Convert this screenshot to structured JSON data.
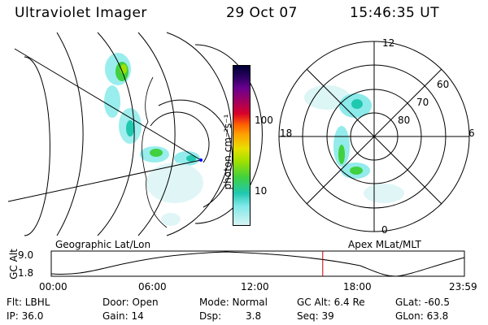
{
  "header": {
    "instrument": "Ultraviolet Imager",
    "date": "29 Oct 07",
    "time": "15:46:35 UT"
  },
  "geo_panel": {
    "label": "Geographic Lat/Lon"
  },
  "polar_panel": {
    "label": "Apex MLat/MLT",
    "mlt_labels": {
      "top": "12",
      "right": "6",
      "bottom": "0",
      "left": "18"
    },
    "lat_labels": [
      "60",
      "70",
      "80"
    ]
  },
  "colorbar": {
    "unit_label": "photon cm⁻²s⁻¹",
    "ticks": [
      "100",
      "10"
    ],
    "colors": [
      "#000033",
      "#2a0060",
      "#6a0090",
      "#a00060",
      "#d8002a",
      "#ff6000",
      "#ffa000",
      "#e8e000",
      "#a0e000",
      "#40d040",
      "#20c8b0",
      "#80e8e8",
      "#d8f4f4"
    ]
  },
  "altitude_strip": {
    "ylabel": "GC Alt",
    "yticks": [
      "9.0",
      "1.8"
    ],
    "xticks": [
      "00:00",
      "06:00",
      "12:00",
      "18:00",
      "23:59"
    ],
    "current_time_fraction": 0.657
  },
  "info": {
    "flt": "Flt: LBHL",
    "ip": "IP: 36.0",
    "door": "Door: Open",
    "gain": "Gain: 14",
    "mode": "Mode: Normal",
    "dsp_label": "Dsp:",
    "dsp_value": "3.8",
    "gc_alt": "GC Alt: 6.4 Re",
    "seq": "Seq: 39",
    "glat": "GLat: -60.5",
    "glon": "GLon: 63.8"
  }
}
